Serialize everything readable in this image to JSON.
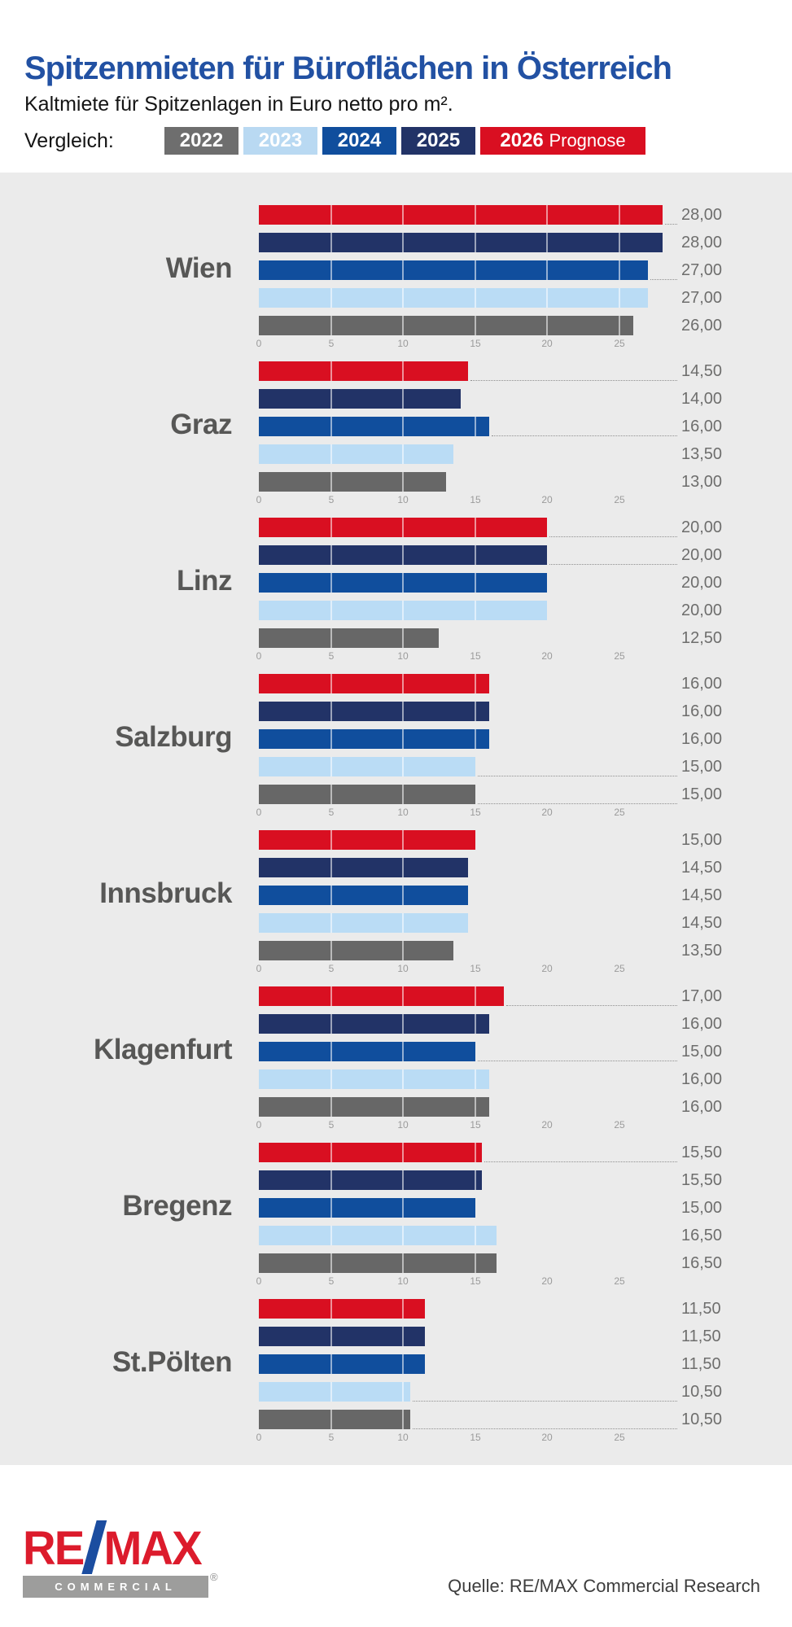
{
  "header": {
    "title": "Spitzenmieten für Büroflächen in Österreich",
    "subtitle": "Kaltmiete für Spitzenlagen in Euro netto pro m².",
    "legend_label": "Vergleich:",
    "legend": [
      {
        "year": "2022",
        "suffix": "",
        "color": "#6e6e6e",
        "text_color": "#ffffff"
      },
      {
        "year": "2023",
        "suffix": "",
        "color": "#b9d9f2",
        "text_color": "#ffffff"
      },
      {
        "year": "2024",
        "suffix": "",
        "color": "#104e9d",
        "text_color": "#ffffff"
      },
      {
        "year": "2025",
        "suffix": "",
        "color": "#223367",
        "text_color": "#ffffff"
      },
      {
        "year": "2026",
        "suffix": "Prognose",
        "color": "#d90f21",
        "text_color": "#ffffff"
      }
    ]
  },
  "chart_data": {
    "type": "bar",
    "orientation": "horizontal",
    "title": "Spitzenmieten für Büroflächen in Österreich",
    "value_unit": "Euro netto pro m²",
    "x_axis": {
      "min": 0,
      "max": 25,
      "ticks": [
        0,
        5,
        10,
        15,
        20,
        25
      ]
    },
    "grid": "white tick separators inside bars every 5 units",
    "series_order_top_to_bottom": [
      "2026 Prognose",
      "2025",
      "2024",
      "2023",
      "2022"
    ],
    "series_colors": {
      "2026 Prognose": "#d90f21",
      "2025": "#223367",
      "2024": "#104e9d",
      "2023": "#badcf5",
      "2022": "#676767"
    },
    "groups": [
      {
        "city": "Wien",
        "bars": [
          {
            "series": "2026 Prognose",
            "value": 28,
            "label": "28,00",
            "leader": true
          },
          {
            "series": "2025",
            "value": 28,
            "label": "28,00",
            "leader": false
          },
          {
            "series": "2024",
            "value": 27,
            "label": "27,00",
            "leader": true
          },
          {
            "series": "2023",
            "value": 27,
            "label": "27,00",
            "leader": false
          },
          {
            "series": "2022",
            "value": 26,
            "label": "26,00",
            "leader": false
          }
        ]
      },
      {
        "city": "Graz",
        "bars": [
          {
            "series": "2026 Prognose",
            "value": 14.5,
            "label": "14,50",
            "leader": true
          },
          {
            "series": "2025",
            "value": 14,
            "label": "14,00",
            "leader": false
          },
          {
            "series": "2024",
            "value": 16,
            "label": "16,00",
            "leader": true
          },
          {
            "series": "2023",
            "value": 13.5,
            "label": "13,50",
            "leader": false
          },
          {
            "series": "2022",
            "value": 13,
            "label": "13,00",
            "leader": false
          }
        ]
      },
      {
        "city": "Linz",
        "bars": [
          {
            "series": "2026 Prognose",
            "value": 20,
            "label": "20,00",
            "leader": true
          },
          {
            "series": "2025",
            "value": 20,
            "label": "20,00",
            "leader": true
          },
          {
            "series": "2024",
            "value": 20,
            "label": "20,00",
            "leader": false
          },
          {
            "series": "2023",
            "value": 20,
            "label": "20,00",
            "leader": false
          },
          {
            "series": "2022",
            "value": 12.5,
            "label": "12,50",
            "leader": false
          }
        ]
      },
      {
        "city": "Salzburg",
        "bars": [
          {
            "series": "2026 Prognose",
            "value": 16,
            "label": "16,00",
            "leader": false
          },
          {
            "series": "2025",
            "value": 16,
            "label": "16,00",
            "leader": false
          },
          {
            "series": "2024",
            "value": 16,
            "label": "16,00",
            "leader": false
          },
          {
            "series": "2023",
            "value": 15,
            "label": "15,00",
            "leader": true
          },
          {
            "series": "2022",
            "value": 15,
            "label": "15,00",
            "leader": true
          }
        ]
      },
      {
        "city": "Innsbruck",
        "bars": [
          {
            "series": "2026 Prognose",
            "value": 15,
            "label": "15,00",
            "leader": false
          },
          {
            "series": "2025",
            "value": 14.5,
            "label": "14,50",
            "leader": false
          },
          {
            "series": "2024",
            "value": 14.5,
            "label": "14,50",
            "leader": false
          },
          {
            "series": "2023",
            "value": 14.5,
            "label": "14,50",
            "leader": false
          },
          {
            "series": "2022",
            "value": 13.5,
            "label": "13,50",
            "leader": false
          }
        ]
      },
      {
        "city": "Klagenfurt",
        "bars": [
          {
            "series": "2026 Prognose",
            "value": 17,
            "label": "17,00",
            "leader": true
          },
          {
            "series": "2025",
            "value": 16,
            "label": "16,00",
            "leader": false
          },
          {
            "series": "2024",
            "value": 15,
            "label": "15,00",
            "leader": true
          },
          {
            "series": "2023",
            "value": 16,
            "label": "16,00",
            "leader": false
          },
          {
            "series": "2022",
            "value": 16,
            "label": "16,00",
            "leader": false
          }
        ]
      },
      {
        "city": "Bregenz",
        "bars": [
          {
            "series": "2026 Prognose",
            "value": 15.5,
            "label": "15,50",
            "leader": true
          },
          {
            "series": "2025",
            "value": 15.5,
            "label": "15,50",
            "leader": false
          },
          {
            "series": "2024",
            "value": 15,
            "label": "15,00",
            "leader": false
          },
          {
            "series": "2023",
            "value": 16.5,
            "label": "16,50",
            "leader": false
          },
          {
            "series": "2022",
            "value": 16.5,
            "label": "16,50",
            "leader": false
          }
        ]
      },
      {
        "city": "St.Pölten",
        "bars": [
          {
            "series": "2026 Prognose",
            "value": 11.5,
            "label": "11,50",
            "leader": false
          },
          {
            "series": "2025",
            "value": 11.5,
            "label": "11,50",
            "leader": false
          },
          {
            "series": "2024",
            "value": 11.5,
            "label": "11,50",
            "leader": false
          },
          {
            "series": "2023",
            "value": 10.5,
            "label": "10,50",
            "leader": true
          },
          {
            "series": "2022",
            "value": 10.5,
            "label": "10,50",
            "leader": true
          }
        ]
      }
    ]
  },
  "footer": {
    "source": "Quelle: RE/MAX Commercial Research",
    "logo": {
      "wordmark_left": "RE",
      "wordmark_right": "MAX",
      "subbrand": "COMMERCIAL",
      "registered": "®"
    }
  }
}
